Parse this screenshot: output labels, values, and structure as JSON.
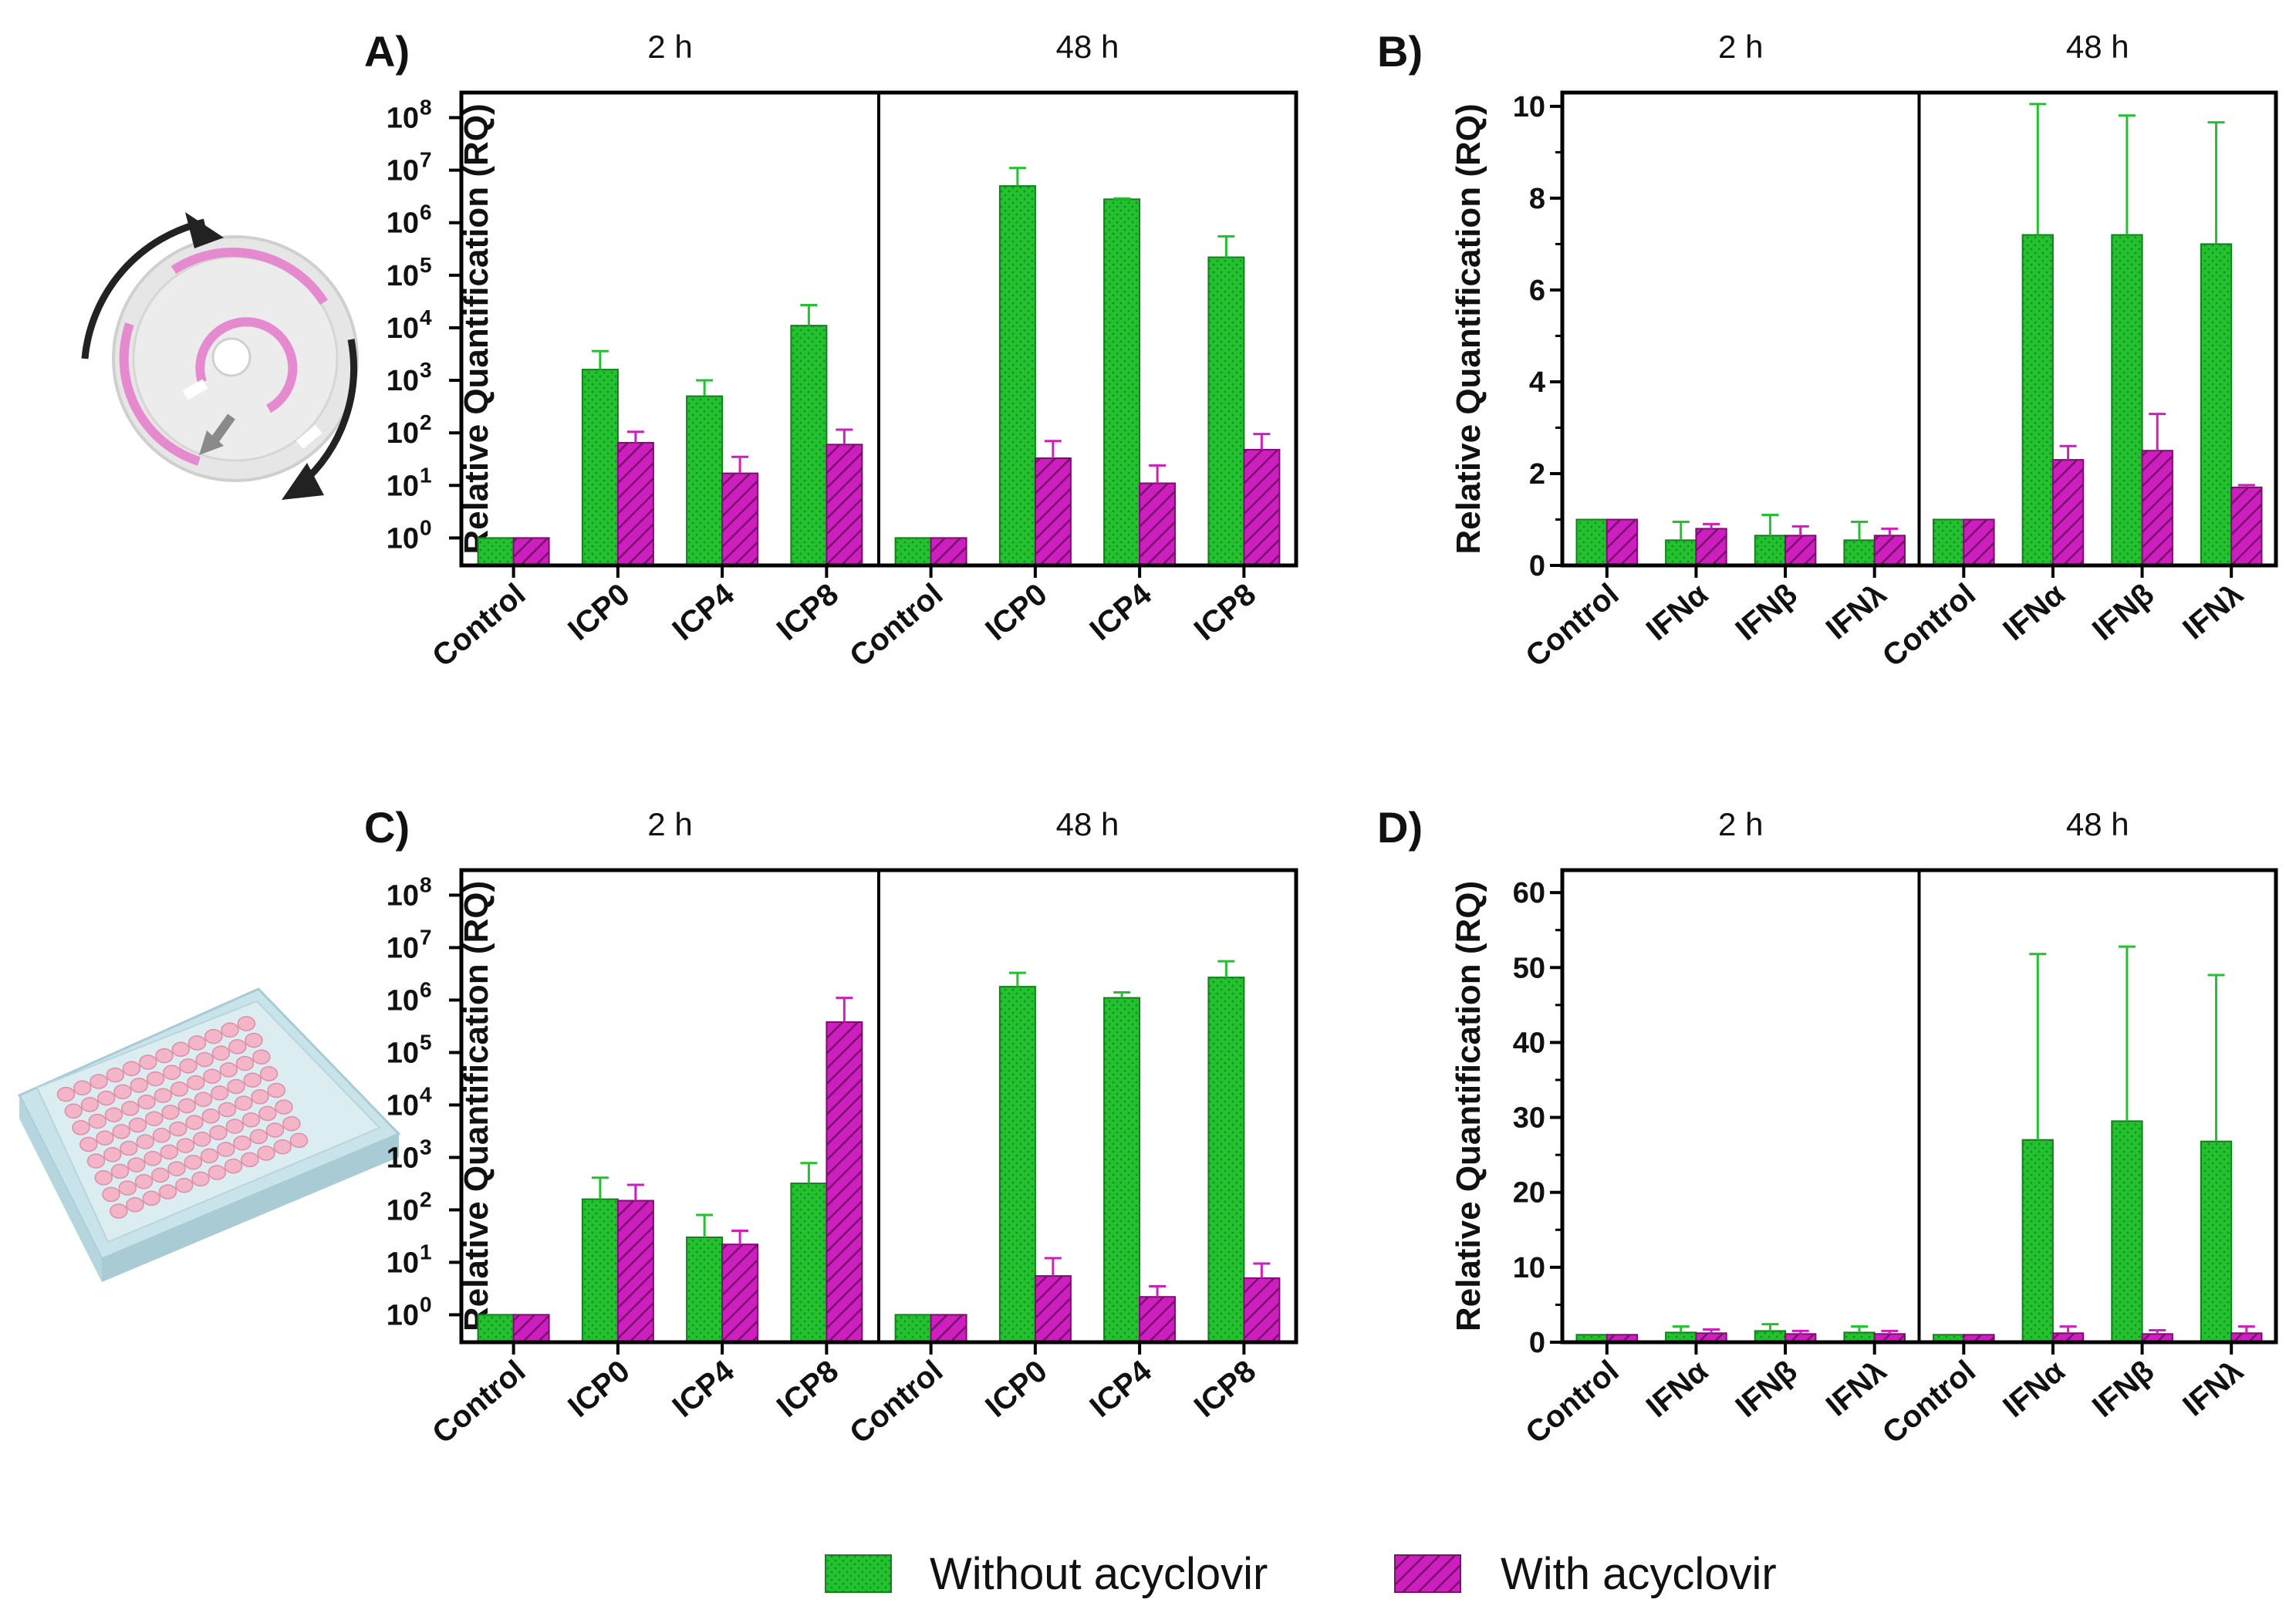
{
  "legend": {
    "series": [
      {
        "name": "Without acyclovir",
        "color": "#23c02f",
        "pattern": "dotted"
      },
      {
        "name": "With acyclovir",
        "color": "#cc1fbe",
        "pattern": "hatched"
      }
    ]
  },
  "chart_data": [
    {
      "panel": "A)",
      "type": "bar",
      "scale": "log",
      "ylabel": "Relative Quantification (RQ)",
      "ytick_labels": [
        "10",
        "10",
        "10",
        "10",
        "10",
        "10",
        "10",
        "10",
        "10"
      ],
      "ytick_exponents": [
        "0",
        "1",
        "2",
        "3",
        "4",
        "5",
        "6",
        "7",
        "8"
      ],
      "ylim": [
        0.3,
        300000000
      ],
      "timepoints": [
        "2 h",
        "48 h"
      ],
      "categories": [
        "Control",
        "ICP0",
        "ICP4",
        "ICP8",
        "Control",
        "ICP0",
        "ICP4",
        "ICP8"
      ],
      "series": [
        {
          "name": "Without acyclovir",
          "values": [
            1,
            1600,
            500,
            11000,
            1,
            5000000,
            2800000,
            220000
          ],
          "error": [
            0,
            3600,
            1000,
            27000,
            0,
            11000000,
            2900000,
            550000
          ]
        },
        {
          "name": "With acyclovir",
          "values": [
            1,
            65,
            17,
            60,
            1,
            33,
            11,
            48
          ],
          "error": [
            0,
            105,
            35,
            115,
            0,
            70,
            24,
            95
          ]
        }
      ]
    },
    {
      "panel": "B)",
      "type": "bar",
      "scale": "linear",
      "ylabel": "Relative Quantification (RQ)",
      "ytick_labels": [
        "0",
        "2",
        "4",
        "6",
        "8",
        "10"
      ],
      "ylim": [
        0,
        10.3
      ],
      "timepoints": [
        "2 h",
        "48 h"
      ],
      "categories": [
        "Control",
        "IFNα",
        "IFNβ",
        "IFNλ",
        "Control",
        "IFNα",
        "IFNβ",
        "IFNλ"
      ],
      "series": [
        {
          "name": "Without acyclovir",
          "values": [
            1,
            0.55,
            0.65,
            0.55,
            1,
            7.2,
            7.2,
            7.0
          ],
          "error": [
            0,
            0.95,
            1.1,
            0.95,
            0,
            10.05,
            9.8,
            9.65
          ]
        },
        {
          "name": "With acyclovir",
          "values": [
            1,
            0.8,
            0.65,
            0.65,
            1,
            2.3,
            2.5,
            1.7
          ],
          "error": [
            0,
            0.9,
            0.85,
            0.8,
            0,
            2.6,
            3.3,
            1.75
          ]
        }
      ]
    },
    {
      "panel": "C)",
      "type": "bar",
      "scale": "log",
      "ylabel": "Relative Quantification (RQ)",
      "ytick_labels": [
        "10",
        "10",
        "10",
        "10",
        "10",
        "10",
        "10",
        "10",
        "10"
      ],
      "ytick_exponents": [
        "0",
        "1",
        "2",
        "3",
        "4",
        "5",
        "6",
        "7",
        "8"
      ],
      "ylim": [
        0.3,
        300000000
      ],
      "timepoints": [
        "2 h",
        "48 h"
      ],
      "categories": [
        "Control",
        "ICP0",
        "ICP4",
        "ICP8",
        "Control",
        "ICP0",
        "ICP4",
        "ICP8"
      ],
      "series": [
        {
          "name": "Without acyclovir",
          "values": [
            1,
            160,
            30,
            320,
            1,
            1800000,
            1100000,
            2700000
          ],
          "error": [
            0,
            410,
            80,
            780,
            0,
            3300000,
            1400000,
            5500000
          ]
        },
        {
          "name": "With acyclovir",
          "values": [
            1,
            150,
            22,
            380000,
            1,
            5.5,
            2.2,
            5
          ],
          "error": [
            0,
            300,
            40,
            1100000,
            0,
            12,
            3.5,
            9.5
          ]
        }
      ]
    },
    {
      "panel": "D)",
      "type": "bar",
      "scale": "linear",
      "ylabel": "Relative Quantification (RQ)",
      "ytick_labels": [
        "0",
        "10",
        "20",
        "30",
        "40",
        "50",
        "60"
      ],
      "ylim": [
        0,
        63
      ],
      "timepoints": [
        "2 h",
        "48 h"
      ],
      "categories": [
        "Control",
        "IFNα",
        "IFNβ",
        "IFNλ",
        "Control",
        "IFNα",
        "IFNβ",
        "IFNλ"
      ],
      "series": [
        {
          "name": "Without acyclovir",
          "values": [
            1,
            1.3,
            1.5,
            1.3,
            1,
            27,
            29.5,
            26.8
          ],
          "error": [
            0,
            2.1,
            2.4,
            2.1,
            0,
            51.8,
            52.8,
            49
          ]
        },
        {
          "name": "With acyclovir",
          "values": [
            1,
            1.2,
            1.1,
            1.1,
            1,
            1.2,
            1.1,
            1.2
          ],
          "error": [
            0,
            1.7,
            1.5,
            1.5,
            0,
            2.1,
            1.6,
            2.1
          ]
        }
      ]
    }
  ]
}
